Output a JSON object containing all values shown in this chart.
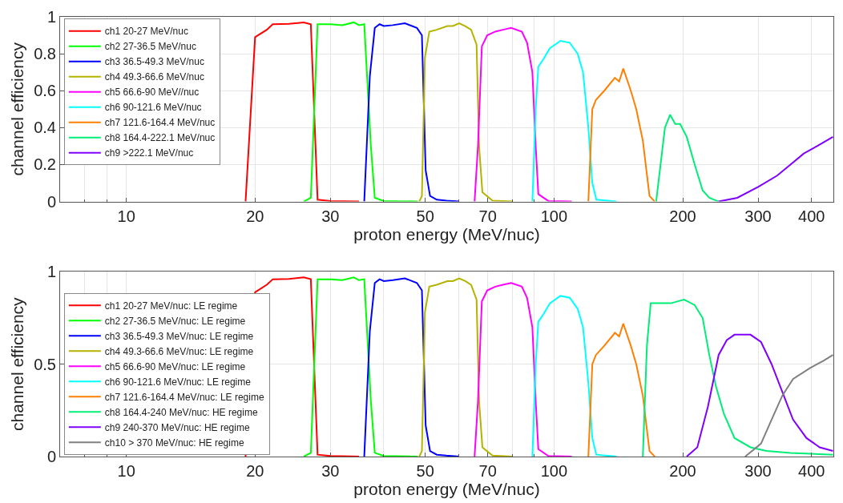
{
  "chart_data": [
    {
      "type": "line",
      "xlabel": "proton energy (MeV/nuc)",
      "ylabel": "channel efficiency",
      "log": "x",
      "grid": true,
      "legend": "top left",
      "line_style": "solid",
      "xlim": [
        7,
        450
      ],
      "xticks": [
        {
          "value": 8,
          "label": null
        },
        {
          "value": 9,
          "label": null
        },
        10,
        20,
        30,
        {
          "value": 40,
          "label": null
        },
        50,
        {
          "value": 60,
          "label": null
        },
        70,
        {
          "value": 80,
          "label": null
        },
        {
          "value": 90,
          "label": null
        },
        100,
        200,
        300,
        400
      ],
      "ylim": [
        0,
        1
      ],
      "yticks": [
        0,
        0.2,
        0.4,
        0.6,
        0.8,
        1
      ],
      "series": [
        {
          "name": "ch1 20-27 MeV/nuc",
          "color": "#ff0000",
          "x": [
            19.0,
            20.0,
            21.3,
            22.0,
            24,
            26.0,
            27.0,
            28.0,
            30,
            35
          ],
          "values": [
            0,
            0.89,
            0.93,
            0.96,
            0.962,
            0.97,
            0.96,
            0.01,
            0.003,
            0
          ]
        },
        {
          "name": "ch2 27-36.5 MeV/nuc",
          "color": "#00ff00",
          "x": [
            26.0,
            27.0,
            28.0,
            30,
            32,
            34.0,
            35,
            36.0,
            37.3,
            38.1,
            40,
            48
          ],
          "values": [
            0,
            0.02,
            0.96,
            0.96,
            0.955,
            0.97,
            0.955,
            0.96,
            0.3,
            0.02,
            0.003,
            0
          ]
        },
        {
          "name": "ch3 36.5-49.3 MeV/nuc",
          "color": "#0000ff",
          "x": [
            36.0,
            37.1,
            38.1,
            39.1,
            40,
            42,
            44.8,
            47.8,
            49.1,
            50.1,
            51.3,
            53.2,
            56,
            60
          ],
          "values": [
            0,
            0.68,
            0.94,
            0.96,
            0.95,
            0.955,
            0.965,
            0.94,
            0.9,
            0.17,
            0.03,
            0.01,
            0.005,
            0
          ]
        },
        {
          "name": "ch4 49.3-66.6 MeV/nuc",
          "color": "#b3b300",
          "x": [
            48.4,
            49.1,
            49.9,
            51.1,
            53.2,
            56.3,
            58,
            60.0,
            62,
            64.0,
            65.9,
            66.8,
            68.0,
            71.8,
            80
          ],
          "values": [
            0,
            0.03,
            0.78,
            0.92,
            0.93,
            0.95,
            0.95,
            0.965,
            0.95,
            0.93,
            0.85,
            0.3,
            0.05,
            0.005,
            0
          ]
        },
        {
          "name": "ch5 66.6-90 MeV//nuc",
          "color": "#ff00ff",
          "x": [
            65.2,
            66.4,
            67.8,
            69.8,
            72.9,
            76,
            79.4,
            84.1,
            86.5,
            89.0,
            90.6,
            91.9,
            97.0,
            110
          ],
          "values": [
            0,
            0.3,
            0.84,
            0.9,
            0.92,
            0.93,
            0.94,
            0.92,
            0.86,
            0.7,
            0.3,
            0.04,
            0.003,
            0
          ]
        },
        {
          "name": "ch6 90-121.6 MeV/nuc",
          "color": "#00ffff",
          "x": [
            89.0,
            90.6,
            91.9,
            94.4,
            97.8,
            103.5,
            108.8,
            113.6,
            116.9,
            120.3,
            122.9,
            125.6,
            140
          ],
          "values": [
            0,
            0.5,
            0.73,
            0.77,
            0.83,
            0.87,
            0.86,
            0.8,
            0.7,
            0.4,
            0.1,
            0.01,
            0
          ]
        },
        {
          "name": "ch7 121.6-164.4 MeV/nuc",
          "color": "#ff8000",
          "x": [
            120.3,
            122.9,
            125.3,
            131.1,
            138.8,
            142,
            145.2,
            151.2,
            155.7,
            161.3,
            167.2,
            172
          ],
          "values": [
            0,
            0.5,
            0.55,
            0.6,
            0.67,
            0.65,
            0.72,
            0.6,
            0.5,
            0.33,
            0.03,
            0
          ]
        },
        {
          "name": "ch8 164.4-222.1 MeV/nuc",
          "color": "#00ee77",
          "x": [
            173.3,
            181.7,
            186.9,
            192,
            197.2,
            204.3,
            213.3,
            222.6,
            230.7,
            242.6
          ],
          "values": [
            0,
            0.4,
            0.47,
            0.42,
            0.42,
            0.35,
            0.2,
            0.06,
            0.02,
            0
          ]
        },
        {
          "name": "ch9 >222.1 MeV/nuc",
          "color": "#8000ff",
          "x": [
            242.6,
            268.2,
            300.7,
            332.4,
            357.2,
            383.8,
            412.3,
            449
          ],
          "values": [
            0,
            0.02,
            0.08,
            0.14,
            0.2,
            0.26,
            0.3,
            0.35
          ]
        }
      ]
    },
    {
      "type": "line",
      "xlabel": "proton energy (MeV/nuc)",
      "ylabel": "channel efficiency",
      "log": "x",
      "grid": true,
      "legend": "bottom left",
      "line_style": "solid",
      "xlim": [
        7,
        450
      ],
      "xticks": [
        {
          "value": 8,
          "label": null
        },
        {
          "value": 9,
          "label": null
        },
        10,
        20,
        30,
        {
          "value": 40,
          "label": null
        },
        50,
        {
          "value": 60,
          "label": null
        },
        70,
        {
          "value": 80,
          "label": null
        },
        {
          "value": 90,
          "label": null
        },
        100,
        200,
        300,
        400
      ],
      "ylim": [
        0,
        1
      ],
      "yticks": [
        0,
        0.5,
        1
      ],
      "series": [
        {
          "name": "ch1 20-27 MeV/nuc: LE regime",
          "color": "#ff0000",
          "x": [
            19.0,
            20.0,
            21.3,
            22.0,
            24,
            26.0,
            27.0,
            28.0,
            30,
            35
          ],
          "values": [
            0,
            0.89,
            0.93,
            0.96,
            0.962,
            0.97,
            0.96,
            0.01,
            0.003,
            0
          ]
        },
        {
          "name": "ch2 27-36.5 MeV/nuc: LE regime",
          "color": "#00ff00",
          "x": [
            26.0,
            27.0,
            28.0,
            30,
            32,
            34.0,
            35,
            36.0,
            37.3,
            38.1,
            40,
            48
          ],
          "values": [
            0,
            0.02,
            0.96,
            0.96,
            0.955,
            0.97,
            0.955,
            0.96,
            0.3,
            0.02,
            0.003,
            0
          ]
        },
        {
          "name": "ch3 36.5-49.3 MeV/nuc: LE regime",
          "color": "#0000ff",
          "x": [
            36.0,
            37.1,
            38.1,
            39.1,
            40,
            42,
            44.8,
            47.8,
            49.1,
            50.1,
            51.3,
            53.2,
            56,
            60
          ],
          "values": [
            0,
            0.68,
            0.94,
            0.96,
            0.95,
            0.955,
            0.965,
            0.94,
            0.9,
            0.17,
            0.03,
            0.01,
            0.005,
            0
          ]
        },
        {
          "name": "ch4 49.3-66.6 MeV/nuc: LE regime",
          "color": "#b3b300",
          "x": [
            48.4,
            49.1,
            49.9,
            51.1,
            53.2,
            56.3,
            58,
            60.0,
            62,
            64.0,
            65.9,
            66.8,
            68.0,
            71.8,
            80
          ],
          "values": [
            0,
            0.03,
            0.78,
            0.92,
            0.93,
            0.95,
            0.95,
            0.965,
            0.95,
            0.93,
            0.85,
            0.3,
            0.05,
            0.005,
            0
          ]
        },
        {
          "name": "ch5 66.6-90 MeV/nuc: LE regime",
          "color": "#ff00ff",
          "x": [
            65.2,
            66.4,
            67.8,
            69.8,
            72.9,
            76,
            79.4,
            84.1,
            86.5,
            89.0,
            90.6,
            91.9,
            97.0,
            110
          ],
          "values": [
            0,
            0.3,
            0.84,
            0.9,
            0.92,
            0.93,
            0.94,
            0.92,
            0.86,
            0.7,
            0.3,
            0.04,
            0.003,
            0
          ]
        },
        {
          "name": "ch6 90-121.6 MeV/nuc: LE regime",
          "color": "#00ffff",
          "x": [
            89.0,
            90.6,
            91.9,
            94.4,
            97.8,
            103.5,
            108.8,
            113.6,
            116.9,
            120.3,
            122.9,
            125.6,
            140
          ],
          "values": [
            0,
            0.5,
            0.73,
            0.77,
            0.83,
            0.87,
            0.86,
            0.8,
            0.7,
            0.4,
            0.1,
            0.01,
            0
          ]
        },
        {
          "name": "ch7 121.6-164.4 MeV/nuc: LE regime",
          "color": "#ff8000",
          "x": [
            120.3,
            122.9,
            125.3,
            131.1,
            138.8,
            142,
            145.2,
            151.2,
            155.7,
            161.3,
            167.2,
            172
          ],
          "values": [
            0,
            0.5,
            0.55,
            0.6,
            0.67,
            0.65,
            0.72,
            0.6,
            0.5,
            0.33,
            0.03,
            0
          ]
        },
        {
          "name": "ch8 164.4-240 MeV/nuc: HE regime",
          "color": "#00ee77",
          "x": [
            161.3,
            164.9,
            168.3,
            177.0,
            187.5,
            201.5,
            213.3,
            222.6,
            230.7,
            239.1,
            249.7,
            264.3,
            288,
            313.9,
            357.2,
            449
          ],
          "values": [
            0,
            0.6,
            0.83,
            0.83,
            0.83,
            0.85,
            0.82,
            0.75,
            0.55,
            0.38,
            0.23,
            0.1,
            0.05,
            0.03,
            0.02,
            0.01
          ]
        },
        {
          "name": "ch9 240-370 MeV/nuc: HE regime",
          "color": "#8000ff",
          "x": [
            204.3,
            216.3,
            229,
            242.6,
            253.4,
            264.3,
            288,
            304.8,
            322.7,
            341.9,
            362.1,
            389.3,
            418,
            449
          ],
          "values": [
            0,
            0.05,
            0.27,
            0.55,
            0.63,
            0.66,
            0.66,
            0.62,
            0.5,
            0.35,
            0.2,
            0.1,
            0.05,
            0.03
          ]
        },
        {
          "name": "ch10 > 370 MeV/nuc: HE regime",
          "color": "#808080",
          "x": [
            279.9,
            304.8,
            322.7,
            341.9,
            362.1,
            397.2,
            427.6,
            449
          ],
          "values": [
            0,
            0.07,
            0.2,
            0.33,
            0.42,
            0.48,
            0.52,
            0.55
          ]
        }
      ]
    }
  ]
}
